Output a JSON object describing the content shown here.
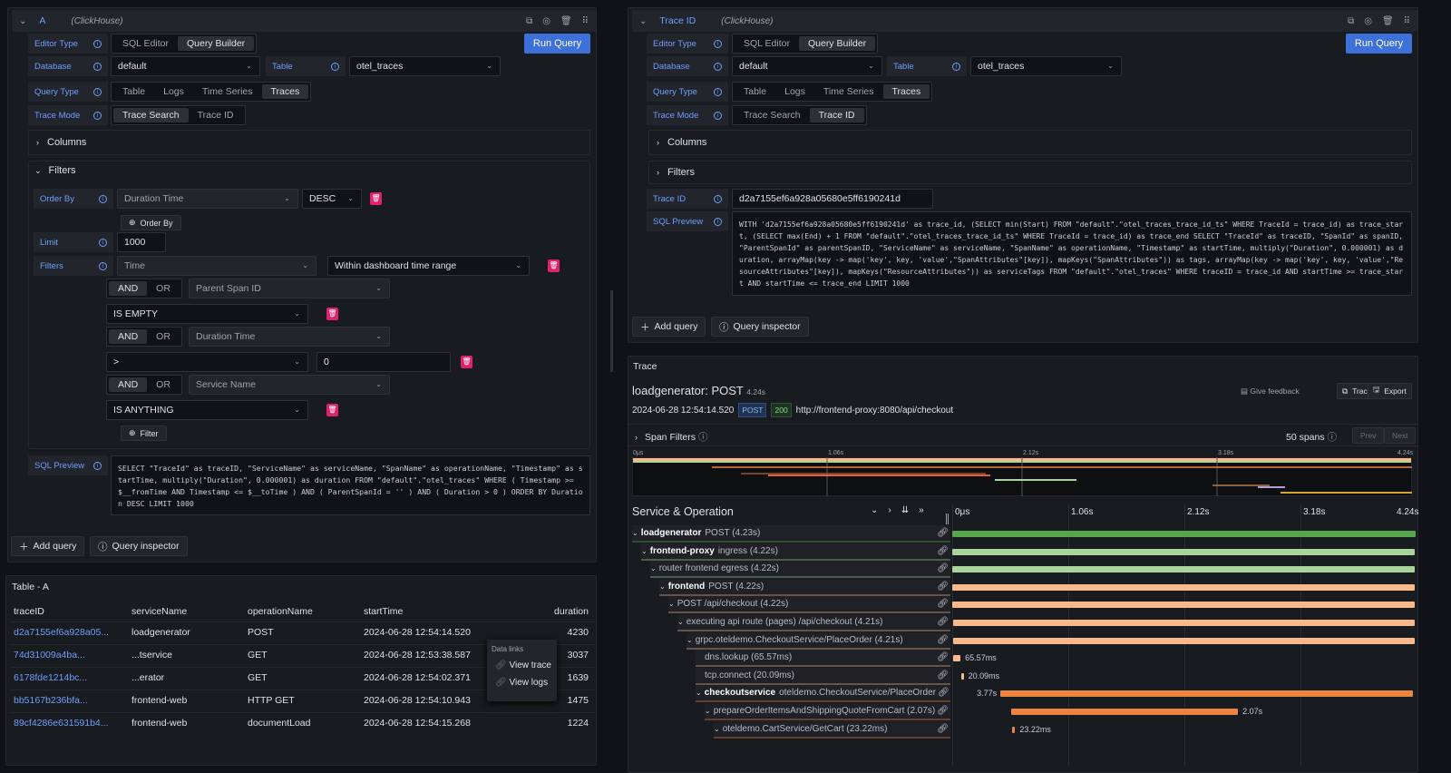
{
  "left_query": {
    "ref": "A",
    "datasource": "(ClickHouse)",
    "editor_type_label": "Editor Type",
    "editor_types": [
      "SQL Editor",
      "Query Builder"
    ],
    "editor_type_selected": "Query Builder",
    "run_label": "Run Query",
    "database_label": "Database",
    "database": "default",
    "table_label": "Table",
    "table": "otel_traces",
    "query_type_label": "Query Type",
    "query_types": [
      "Table",
      "Logs",
      "Time Series",
      "Traces"
    ],
    "query_type_selected": "Traces",
    "trace_mode_label": "Trace Mode",
    "trace_modes": [
      "Trace Search",
      "Trace ID"
    ],
    "trace_mode_selected": "Trace Search",
    "columns_label": "Columns",
    "filters_section_label": "Filters",
    "order_by_label": "Order By",
    "order_by_field": "Duration Time",
    "order_by_dir": "DESC",
    "add_order_by": "Order By",
    "limit_label": "Limit",
    "limit": "1000",
    "filters_label": "Filters",
    "filter_time": "Time",
    "filter_time_op": "Within dashboard time range",
    "and": "AND",
    "or": "OR",
    "filter1_field": "Parent Span ID",
    "filter1_op": "IS EMPTY",
    "filter2_field": "Duration Time",
    "filter2_op": ">",
    "filter2_value": "0",
    "filter3_field": "Service Name",
    "filter3_op": "IS ANYTHING",
    "add_filter": "Filter",
    "sql_preview_label": "SQL Preview",
    "sql": "SELECT \"TraceId\" as traceID, \"ServiceName\" as serviceName, \"SpanName\" as operationName, \"Timestamp\" as startTime, multiply(\"Duration\", 0.000001) as duration FROM \"default\".\"otel_traces\" WHERE ( Timestamp >= $__fromTime AND Timestamp <= $__toTime ) AND ( ParentSpanId = '' ) AND ( Duration > 0 ) ORDER BY Duration DESC LIMIT 1000",
    "add_query": "Add query",
    "query_inspector": "Query inspector"
  },
  "right_query": {
    "ref": "Trace ID",
    "datasource": "(ClickHouse)",
    "editor_type_label": "Editor Type",
    "editor_types": [
      "SQL Editor",
      "Query Builder"
    ],
    "run_label": "Run Query",
    "database_label": "Database",
    "database": "default",
    "table_label": "Table",
    "table": "otel_traces",
    "query_type_label": "Query Type",
    "query_types": [
      "Table",
      "Logs",
      "Time Series",
      "Traces"
    ],
    "trace_mode_label": "Trace Mode",
    "trace_modes": [
      "Trace Search",
      "Trace ID"
    ],
    "trace_mode_selected": "Trace ID",
    "columns_label": "Columns",
    "filters_label": "Filters",
    "trace_id_label": "Trace ID",
    "trace_id": "d2a7155ef6a928a05680e5ff6190241d",
    "sql_preview_label": "SQL Preview",
    "sql": "WITH 'd2a7155ef6a928a05680e5ff6190241d' as trace_id, (SELECT min(Start) FROM \"default\".\"otel_traces_trace_id_ts\" WHERE TraceId = trace_id) as trace_start, (SELECT max(End) + 1 FROM \"default\".\"otel_traces_trace_id_ts\" WHERE TraceId = trace_id) as trace_end SELECT \"TraceId\" as traceID, \"SpanId\" as spanID, \"ParentSpanId\" as parentSpanID, \"ServiceName\" as serviceName, \"SpanName\" as operationName, \"Timestamp\" as startTime, multiply(\"Duration\", 0.000001) as duration, arrayMap(key -> map('key', key, 'value',\"SpanAttributes\"[key]), mapKeys(\"SpanAttributes\")) as tags, arrayMap(key -> map('key', key, 'value',\"ResourceAttributes\"[key]), mapKeys(\"ResourceAttributes\")) as serviceTags FROM \"default\".\"otel_traces\" WHERE traceID = trace_id AND startTime >= trace_start AND startTime <= trace_end LIMIT 1000",
    "add_query": "Add query",
    "query_inspector": "Query inspector"
  },
  "table_panel": {
    "title": "Table - A",
    "columns": [
      "traceID",
      "serviceName",
      "operationName",
      "startTime",
      "duration"
    ],
    "rows": [
      [
        "d2a7155ef6a928a05...",
        "loadgenerator",
        "POST",
        "2024-06-28 12:54:14.520",
        "4230"
      ],
      [
        "74d31009a4ba...",
        "...tservice",
        "GET",
        "2024-06-28 12:53:38.587",
        "3037"
      ],
      [
        "6178fde1214bc...",
        "...erator",
        "GET",
        "2024-06-28 12:54:02.371",
        "1639"
      ],
      [
        "bb5167b236bfa...",
        "frontend-web",
        "HTTP GET",
        "2024-06-28 12:54:10.943",
        "1475"
      ],
      [
        "89cf4286e631591b4...",
        "frontend-web",
        "documentLoad",
        "2024-06-28 12:54:15.268",
        "1224"
      ]
    ],
    "menu": {
      "title": "Data links",
      "items": [
        "View trace",
        "View logs"
      ]
    }
  },
  "trace": {
    "panel_title": "Trace",
    "title": "loadgenerator: POST",
    "duration": "4.24s",
    "start": "2024-06-28 12:54:14.520",
    "method": "POST",
    "status": "200",
    "url": "http://frontend-proxy:8080/api/checkout",
    "give_feedback": "Give feedback",
    "trace_id_btn": "Trace ID",
    "export_btn": "Export",
    "span_filters": "Span Filters",
    "span_count": "50 spans",
    "prev": "Prev",
    "next": "Next",
    "ticks": [
      "0μs",
      "1.06s",
      "2.12s",
      "3.18s",
      "4.24s"
    ],
    "column_header": "Service & Operation",
    "total_s": 4.24,
    "spans": [
      {
        "service": "loadgenerator",
        "op": "POST (4.23s)",
        "depth": 0,
        "start": 0,
        "dur": 4.23,
        "color": "#56a64b"
      },
      {
        "service": "frontend-proxy",
        "op": "ingress (4.22s)",
        "depth": 1,
        "start": 0,
        "dur": 4.22,
        "color": "#a9d59a"
      },
      {
        "service": "",
        "op": "router frontend egress (4.22s)",
        "depth": 2,
        "start": 0,
        "dur": 4.22,
        "color": "#a9d59a"
      },
      {
        "service": "frontend",
        "op": "POST (4.22s)",
        "depth": 3,
        "start": 0,
        "dur": 4.22,
        "color": "#f9b98a"
      },
      {
        "service": "",
        "op": "POST /api/checkout (4.22s)",
        "depth": 4,
        "start": 0,
        "dur": 4.22,
        "color": "#f9b98a"
      },
      {
        "service": "",
        "op": "executing api route (pages) /api/checkout (4.21s)",
        "depth": 5,
        "start": 0.01,
        "dur": 4.21,
        "color": "#f9b98a"
      },
      {
        "service": "",
        "op": "grpc.oteldemo.CheckoutService/PlaceOrder (4.21s)",
        "depth": 6,
        "start": 0.01,
        "dur": 4.21,
        "color": "#f9b98a"
      },
      {
        "service": "",
        "op": "dns.lookup (65.57ms)",
        "depth": 7,
        "start": 0.01,
        "dur": 0.066,
        "color": "#f9b98a",
        "label": "65.57ms",
        "leaf": true
      },
      {
        "service": "",
        "op": "tcp.connect (20.09ms)",
        "depth": 7,
        "start": 0.08,
        "dur": 0.02,
        "color": "#f9b98a",
        "label": "20.09ms",
        "leaf": true
      },
      {
        "service": "checkoutservice",
        "op": "oteldemo.CheckoutService/PlaceOrder",
        "depth": 7,
        "start": 0.44,
        "dur": 3.77,
        "color": "#eb843d",
        "label": "3.77s",
        "label_left": true
      },
      {
        "service": "",
        "op": "prepareOrderItemsAndShippingQuoteFromCart (2.07s)",
        "depth": 8,
        "start": 0.54,
        "dur": 2.07,
        "color": "#eb843d",
        "label": "2.07s"
      },
      {
        "service": "",
        "op": "oteldemo.CartService/GetCart (23.22ms)",
        "depth": 9,
        "start": 0.55,
        "dur": 0.023,
        "color": "#eb843d",
        "label": "23.22ms"
      }
    ]
  }
}
